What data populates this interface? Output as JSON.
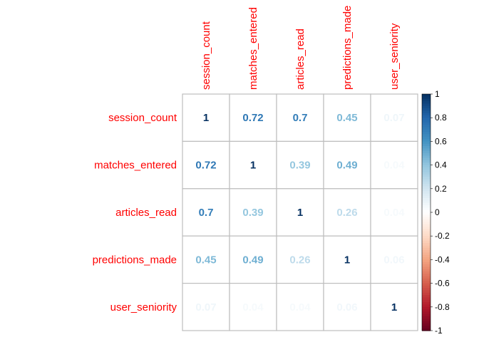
{
  "chart_data": {
    "type": "heatmap",
    "title": "",
    "variables": [
      "session_count",
      "matches_entered",
      "articles_read",
      "predictions_made",
      "user_seniority"
    ],
    "matrix": [
      [
        1,
        0.72,
        0.7,
        0.45,
        0.07
      ],
      [
        0.72,
        1,
        0.39,
        0.49,
        0.04
      ],
      [
        0.7,
        0.39,
        1,
        0.26,
        0.04
      ],
      [
        0.45,
        0.49,
        0.26,
        1,
        0.06
      ],
      [
        0.07,
        0.04,
        0.04,
        0.06,
        1
      ]
    ],
    "cell_labels": [
      [
        "1",
        "0.72",
        "0.7",
        "0.45",
        "0.07"
      ],
      [
        "0.72",
        "1",
        "0.39",
        "0.49",
        "0.04"
      ],
      [
        "0.7",
        "0.39",
        "1",
        "0.26",
        "0.04"
      ],
      [
        "0.45",
        "0.49",
        "0.26",
        "1",
        "0.06"
      ],
      [
        "0.07",
        "0.04",
        "0.04",
        "0.06",
        "1"
      ]
    ],
    "value_range": [
      -1,
      1
    ],
    "colorbar": {
      "placement": "right",
      "ticks": [
        "1",
        "0.8",
        "0.6",
        "0.4",
        "0.2",
        "0",
        "-0.2",
        "-0.4",
        "-0.6",
        "-0.8",
        "-1"
      ],
      "tick_values": [
        1,
        0.8,
        0.6,
        0.4,
        0.2,
        0,
        -0.2,
        -0.4,
        -0.6,
        -0.8,
        -1
      ]
    },
    "grid": true,
    "colors": {
      "label": "#ff0000",
      "grid": "#bebebe",
      "scale_negative": [
        "#67001f",
        "#b2182b",
        "#d6604d",
        "#f4a582",
        "#fddbc7",
        "#ffffff"
      ],
      "scale_positive": [
        "#ffffff",
        "#d1e5f0",
        "#92c5de",
        "#4393c3",
        "#2166ac",
        "#053061"
      ]
    }
  }
}
